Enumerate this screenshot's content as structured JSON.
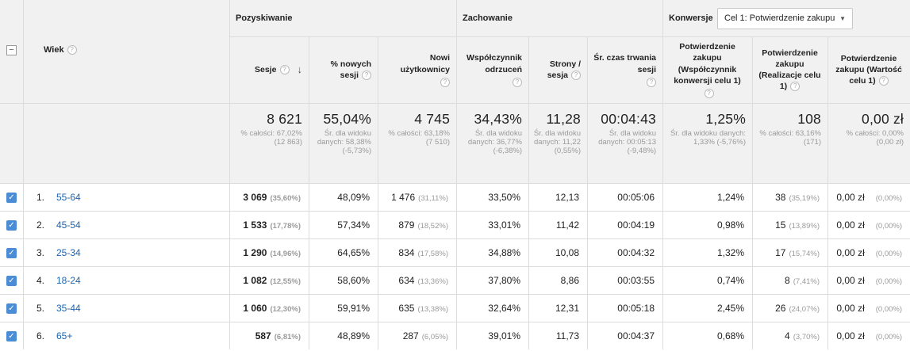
{
  "header": {
    "dimension_label": "Wiek",
    "groups": {
      "acquisition": "Pozyskiwanie",
      "behavior": "Zachowanie",
      "conversions": "Konwersje"
    },
    "goal_select": "Cel 1: Potwierdzenie zakupu",
    "columns": {
      "sessions": "Sesje",
      "new_sessions": "% nowych sesji",
      "new_users": "Nowi użytkownicy",
      "bounce": "Współczynnik odrzuceń",
      "pages": "Strony / sesja",
      "duration": "Śr. czas trwania sesji",
      "conv_rate": "Potwierdzenie zakupu (Współczynnik konwersji celu 1)",
      "conv_count": "Potwierdzenie zakupu (Realizacje celu 1)",
      "conv_value": "Potwierdzenie zakupu (Wartość celu 1)"
    },
    "help_glyph": "?"
  },
  "totals": {
    "sessions": {
      "value": "8 621",
      "sub": "% całości: 67,02% (12 863)"
    },
    "new_sessions": {
      "value": "55,04%",
      "sub": "Śr. dla widoku danych: 58,38% (-5,73%)"
    },
    "new_users": {
      "value": "4 745",
      "sub": "% całości: 63,18% (7 510)"
    },
    "bounce": {
      "value": "34,43%",
      "sub": "Śr. dla widoku danych: 36,77% (-6,38%)"
    },
    "pages": {
      "value": "11,28",
      "sub": "Śr. dla widoku danych: 11,22 (0,55%)"
    },
    "duration": {
      "value": "00:04:43",
      "sub": "Śr. dla widoku danych: 00:05:13 (-9,48%)"
    },
    "conv_rate": {
      "value": "1,25%",
      "sub": "Śr. dla widoku danych: 1,33% (-5,76%)"
    },
    "conv_count": {
      "value": "108",
      "sub": "% całości: 63,16% (171)"
    },
    "conv_value": {
      "value": "0,00 zł",
      "sub": "% całości: 0,00% (0,00 zł)"
    }
  },
  "rows": [
    {
      "idx": "1.",
      "age": "55-64",
      "sessions": "3 069",
      "sessions_pct": "(35,60%)",
      "new_sessions": "48,09%",
      "new_users": "1 476",
      "new_users_pct": "(31,11%)",
      "bounce": "33,50%",
      "pages": "12,13",
      "duration": "00:05:06",
      "conv_rate": "1,24%",
      "conv_count": "38",
      "conv_count_pct": "(35,19%)",
      "conv_value": "0,00 zł",
      "conv_value_pct": "(0,00%)"
    },
    {
      "idx": "2.",
      "age": "45-54",
      "sessions": "1 533",
      "sessions_pct": "(17,78%)",
      "new_sessions": "57,34%",
      "new_users": "879",
      "new_users_pct": "(18,52%)",
      "bounce": "33,01%",
      "pages": "11,42",
      "duration": "00:04:19",
      "conv_rate": "0,98%",
      "conv_count": "15",
      "conv_count_pct": "(13,89%)",
      "conv_value": "0,00 zł",
      "conv_value_pct": "(0,00%)"
    },
    {
      "idx": "3.",
      "age": "25-34",
      "sessions": "1 290",
      "sessions_pct": "(14,96%)",
      "new_sessions": "64,65%",
      "new_users": "834",
      "new_users_pct": "(17,58%)",
      "bounce": "34,88%",
      "pages": "10,08",
      "duration": "00:04:32",
      "conv_rate": "1,32%",
      "conv_count": "17",
      "conv_count_pct": "(15,74%)",
      "conv_value": "0,00 zł",
      "conv_value_pct": "(0,00%)"
    },
    {
      "idx": "4.",
      "age": "18-24",
      "sessions": "1 082",
      "sessions_pct": "(12,55%)",
      "new_sessions": "58,60%",
      "new_users": "634",
      "new_users_pct": "(13,36%)",
      "bounce": "37,80%",
      "pages": "8,86",
      "duration": "00:03:55",
      "conv_rate": "0,74%",
      "conv_count": "8",
      "conv_count_pct": "(7,41%)",
      "conv_value": "0,00 zł",
      "conv_value_pct": "(0,00%)"
    },
    {
      "idx": "5.",
      "age": "35-44",
      "sessions": "1 060",
      "sessions_pct": "(12,30%)",
      "new_sessions": "59,91%",
      "new_users": "635",
      "new_users_pct": "(13,38%)",
      "bounce": "32,64%",
      "pages": "12,31",
      "duration": "00:05:18",
      "conv_rate": "2,45%",
      "conv_count": "26",
      "conv_count_pct": "(24,07%)",
      "conv_value": "0,00 zł",
      "conv_value_pct": "(0,00%)"
    },
    {
      "idx": "6.",
      "age": "65+",
      "sessions": "587",
      "sessions_pct": "(6,81%)",
      "new_sessions": "48,89%",
      "new_users": "287",
      "new_users_pct": "(6,05%)",
      "bounce": "39,01%",
      "pages": "11,73",
      "duration": "00:04:37",
      "conv_rate": "0,68%",
      "conv_count": "4",
      "conv_count_pct": "(3,70%)",
      "conv_value": "0,00 zł",
      "conv_value_pct": "(0,00%)"
    }
  ]
}
